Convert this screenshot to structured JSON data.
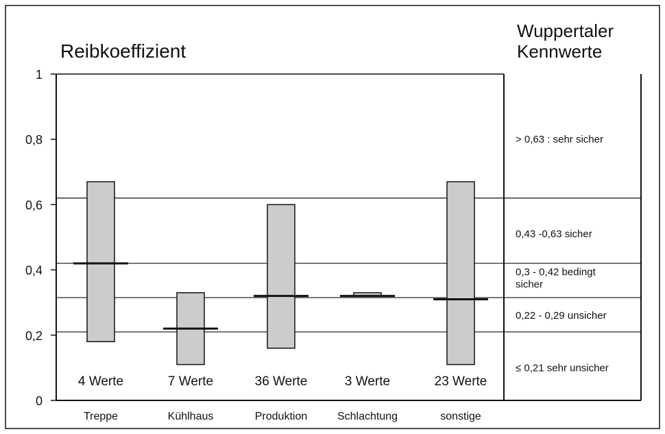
{
  "chart_data": {
    "type": "bar",
    "title": "Reibkoeffizient",
    "ylim": [
      0,
      1
    ],
    "yticks": [
      "0",
      "0,2",
      "0,4",
      "0,6",
      "0,8",
      "1"
    ],
    "ytick_values": [
      0,
      0.2,
      0.4,
      0.6,
      0.8,
      1
    ],
    "categories": [
      "Treppe",
      "Kühlhaus",
      "Produktion",
      "Schlachtung",
      "sonstige"
    ],
    "ranges": [
      {
        "min": 0.18,
        "max": 0.67,
        "mean": 0.42,
        "count_label": "4 Werte"
      },
      {
        "min": 0.11,
        "max": 0.33,
        "mean": 0.22,
        "count_label": "7 Werte"
      },
      {
        "min": 0.16,
        "max": 0.6,
        "mean": 0.32,
        "count_label": "36 Werte"
      },
      {
        "min": 0.32,
        "max": 0.33,
        "mean": 0.32,
        "count_label": "3 Werte"
      },
      {
        "min": 0.11,
        "max": 0.67,
        "mean": 0.31,
        "count_label": "23 Werte"
      }
    ],
    "threshold_lines": [
      0.21,
      0.315,
      0.42,
      0.62
    ],
    "bar_fill": "#cccccc"
  },
  "legend": {
    "title_line1": "Wuppertaler",
    "title_line2": "Kennwerte",
    "classes": [
      {
        "lines": [
          "> 0,63 : sehr sicher"
        ],
        "value": 0.8
      },
      {
        "lines": [
          "0,43 -0,63 sicher"
        ],
        "value": 0.51
      },
      {
        "lines": [
          "0,3 - 0,42 bedingt",
          "sicher"
        ],
        "value": 0.375
      },
      {
        "lines": [
          "0,22 - 0,29 unsicher"
        ],
        "value": 0.26
      },
      {
        "lines": [
          "≤ 0,21 sehr unsicher"
        ],
        "value": 0.1
      }
    ]
  }
}
